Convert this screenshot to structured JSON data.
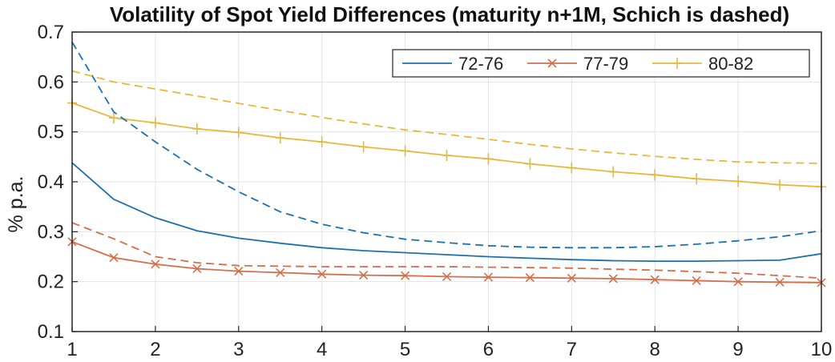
{
  "chart_data": {
    "type": "line",
    "title": "Volatility of Spot Yield Differences (maturity n+1M, Schich is dashed)",
    "xlabel": "",
    "ylabel": "% p.a.",
    "xlim": [
      1,
      10
    ],
    "ylim": [
      0.1,
      0.7
    ],
    "xticks": [
      "1",
      "2",
      "3",
      "4",
      "5",
      "6",
      "7",
      "8",
      "9",
      "10"
    ],
    "yticks": [
      "0.1",
      "0.2",
      "0.3",
      "0.4",
      "0.5",
      "0.6",
      "0.7"
    ],
    "grid": true,
    "legend_position": "top-right",
    "x": [
      1,
      1.5,
      2,
      2.5,
      3,
      3.5,
      4,
      4.5,
      5,
      5.5,
      6,
      6.5,
      7,
      7.5,
      8,
      8.5,
      9,
      9.5,
      10
    ],
    "series": [
      {
        "name": "72-76",
        "color": "#1f6fb0",
        "marker": "none",
        "values": [
          0.438,
          0.365,
          0.328,
          0.302,
          0.287,
          0.277,
          0.268,
          0.262,
          0.258,
          0.254,
          0.25,
          0.247,
          0.244,
          0.242,
          0.241,
          0.241,
          0.242,
          0.243,
          0.256
        ]
      },
      {
        "name": "77-79",
        "color": "#d26f4d",
        "marker": "x",
        "values": [
          0.28,
          0.248,
          0.235,
          0.226,
          0.221,
          0.218,
          0.215,
          0.213,
          0.212,
          0.21,
          0.209,
          0.208,
          0.207,
          0.206,
          0.204,
          0.202,
          0.2,
          0.199,
          0.198
        ]
      },
      {
        "name": "80-82",
        "color": "#e6b83c",
        "marker": "plus",
        "values": [
          0.558,
          0.528,
          0.518,
          0.506,
          0.499,
          0.488,
          0.48,
          0.47,
          0.462,
          0.453,
          0.446,
          0.436,
          0.428,
          0.42,
          0.414,
          0.406,
          0.401,
          0.394,
          0.39
        ]
      },
      {
        "color": "#1f6fb0",
        "dashed": true,
        "values": [
          0.68,
          0.54,
          0.48,
          0.425,
          0.38,
          0.34,
          0.315,
          0.298,
          0.285,
          0.278,
          0.272,
          0.269,
          0.268,
          0.268,
          0.27,
          0.275,
          0.282,
          0.29,
          0.302
        ]
      },
      {
        "color": "#d26f4d",
        "dashed": true,
        "values": [
          0.318,
          0.286,
          0.25,
          0.238,
          0.232,
          0.231,
          0.23,
          0.23,
          0.23,
          0.23,
          0.229,
          0.228,
          0.227,
          0.225,
          0.223,
          0.22,
          0.217,
          0.212,
          0.207
        ]
      },
      {
        "color": "#e6b83c",
        "dashed": true,
        "values": [
          0.622,
          0.6,
          0.586,
          0.572,
          0.557,
          0.543,
          0.529,
          0.516,
          0.504,
          0.495,
          0.485,
          0.475,
          0.466,
          0.458,
          0.451,
          0.445,
          0.44,
          0.438,
          0.437
        ]
      }
    ]
  }
}
